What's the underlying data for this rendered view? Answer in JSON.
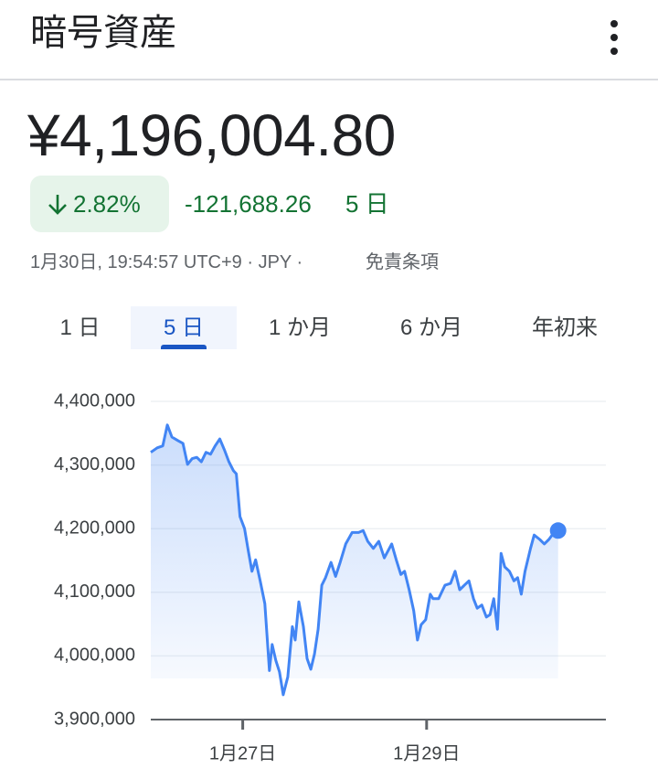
{
  "header": {
    "title": "暗号資産"
  },
  "price": "¥4,196,004.80",
  "change": {
    "percent": "2.82%",
    "amount": "-121,688.26",
    "period": "5 日"
  },
  "timestamp": "1月30日, 19:54:57 UTC+9 · JPY ·",
  "disclaimer": "免責条項",
  "tabs": [
    "1 日",
    "5 日",
    "1 か月",
    "6 か月",
    "年初来"
  ],
  "selected_tab": 1,
  "chart_data": {
    "type": "line",
    "color": "#4285f4",
    "grid": true,
    "xlim": [
      0,
      4.95
    ],
    "xticks": [
      {
        "value": 1,
        "label": "1月27日"
      },
      {
        "value": 3,
        "label": "1月29日"
      }
    ],
    "ylim": [
      3900000,
      4400000
    ],
    "yticks": [
      {
        "value": 3900000,
        "label": "3,900,000"
      },
      {
        "value": 4000000,
        "label": "4,000,000"
      },
      {
        "value": 4100000,
        "label": "4,100,000"
      },
      {
        "value": 4200000,
        "label": "4,200,000"
      },
      {
        "value": 4300000,
        "label": "4,300,000"
      },
      {
        "value": 4400000,
        "label": "4,400,000"
      }
    ],
    "x": [
      0,
      0.07,
      0.13,
      0.18,
      0.23,
      0.3,
      0.35,
      0.4,
      0.45,
      0.5,
      0.55,
      0.6,
      0.65,
      0.7,
      0.75,
      0.8,
      0.85,
      0.9,
      0.93,
      0.97,
      1.02,
      1.06,
      1.1,
      1.14,
      1.19,
      1.24,
      1.29,
      1.32,
      1.36,
      1.4,
      1.44,
      1.49,
      1.54,
      1.57,
      1.61,
      1.66,
      1.7,
      1.74,
      1.78,
      1.82,
      1.86,
      1.9,
      1.96,
      2.01,
      2.06,
      2.12,
      2.19,
      2.26,
      2.31,
      2.36,
      2.42,
      2.48,
      2.54,
      2.62,
      2.67,
      2.72,
      2.76,
      2.81,
      2.86,
      2.9,
      2.94,
      2.99,
      3.04,
      3.07,
      3.13,
      3.2,
      3.26,
      3.31,
      3.36,
      3.41,
      3.46,
      3.51,
      3.55,
      3.6,
      3.65,
      3.69,
      3.73,
      3.77,
      3.81,
      3.85,
      3.9,
      3.95,
      3.99,
      4.03,
      4.07,
      4.13,
      4.17,
      4.23,
      4.28,
      4.33,
      4.38,
      4.43
    ],
    "values": [
      4320000,
      4327000,
      4330000,
      4363000,
      4344000,
      4338000,
      4334000,
      4301000,
      4310000,
      4312000,
      4305000,
      4320000,
      4317000,
      4330000,
      4341000,
      4324000,
      4305000,
      4291000,
      4286000,
      4219000,
      4200000,
      4166000,
      4133000,
      4151000,
      4118000,
      4082000,
      3977000,
      4018000,
      3993000,
      3975000,
      3939000,
      3967000,
      4046000,
      4025000,
      4085000,
      4046000,
      3996000,
      3979000,
      4003000,
      4042000,
      4111000,
      4123000,
      4147000,
      4125000,
      4147000,
      4176000,
      4194000,
      4194000,
      4197000,
      4180000,
      4169000,
      4180000,
      4154000,
      4176000,
      4151000,
      4128000,
      4133000,
      4104000,
      4071000,
      4025000,
      4049000,
      4057000,
      4097000,
      4090000,
      4090000,
      4111000,
      4114000,
      4133000,
      4104000,
      4111000,
      4118000,
      4090000,
      4075000,
      4080000,
      4061000,
      4065000,
      4090000,
      4042000,
      4161000,
      4140000,
      4133000,
      4118000,
      4123000,
      4097000,
      4133000,
      4169000,
      4190000,
      4183000,
      4176000,
      4183000,
      4193000,
      4197000
    ]
  }
}
